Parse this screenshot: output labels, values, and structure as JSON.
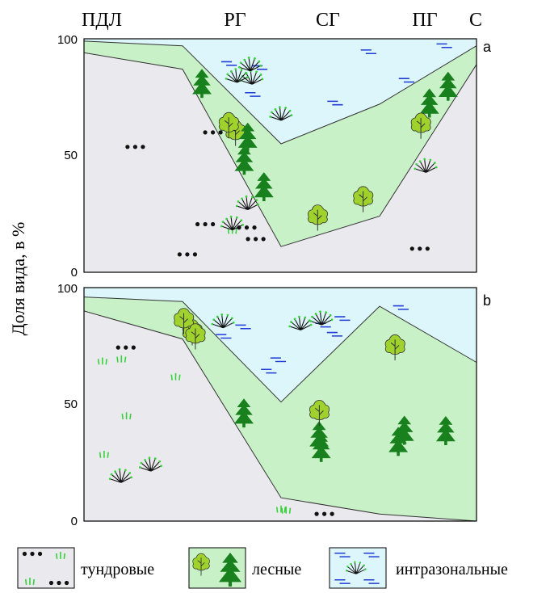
{
  "chart_data": {
    "type": "area",
    "ylabel": "Доля вида, в %",
    "ylim": [
      0,
      100
    ],
    "yticks": [
      "0",
      "50",
      "100"
    ],
    "categories": [
      "ПДЛ",
      "РГ",
      "СГ",
      "ПГ",
      "С"
    ],
    "colors": {
      "tundra": "#e9e9ee",
      "forest": "#c8f1c8",
      "intrazonal": "#ddf6fb",
      "tree_dark": "#18801c",
      "leaf": "#9fd22c",
      "water": "#1f3dd6",
      "grass": "#35d23a"
    },
    "legend": [
      {
        "key": "tundra",
        "label": "тундровые"
      },
      {
        "key": "forest",
        "label": "лесные"
      },
      {
        "key": "intrazonal",
        "label": "интразональные"
      }
    ],
    "panels": [
      {
        "label": "a",
        "x": [
          0,
          1,
          2,
          3,
          4
        ],
        "series": [
          {
            "key": "tundra",
            "values": [
              94,
              87,
              11,
              24,
              89
            ]
          },
          {
            "key": "forest",
            "values": [
              5,
              10,
              44,
              48,
              8
            ]
          },
          {
            "key": "intrazonal",
            "values": [
              1,
              3,
              45,
              28,
              3
            ]
          }
        ]
      },
      {
        "label": "b",
        "x": [
          0,
          1,
          2,
          3,
          4
        ],
        "series": [
          {
            "key": "tundra",
            "values": [
              90,
              78,
              10,
              3,
              0
            ]
          },
          {
            "key": "forest",
            "values": [
              6,
              16,
              41,
              89,
              68
            ]
          },
          {
            "key": "intrazonal",
            "values": [
              4,
              6,
              49,
              8,
              32
            ]
          }
        ]
      }
    ]
  }
}
